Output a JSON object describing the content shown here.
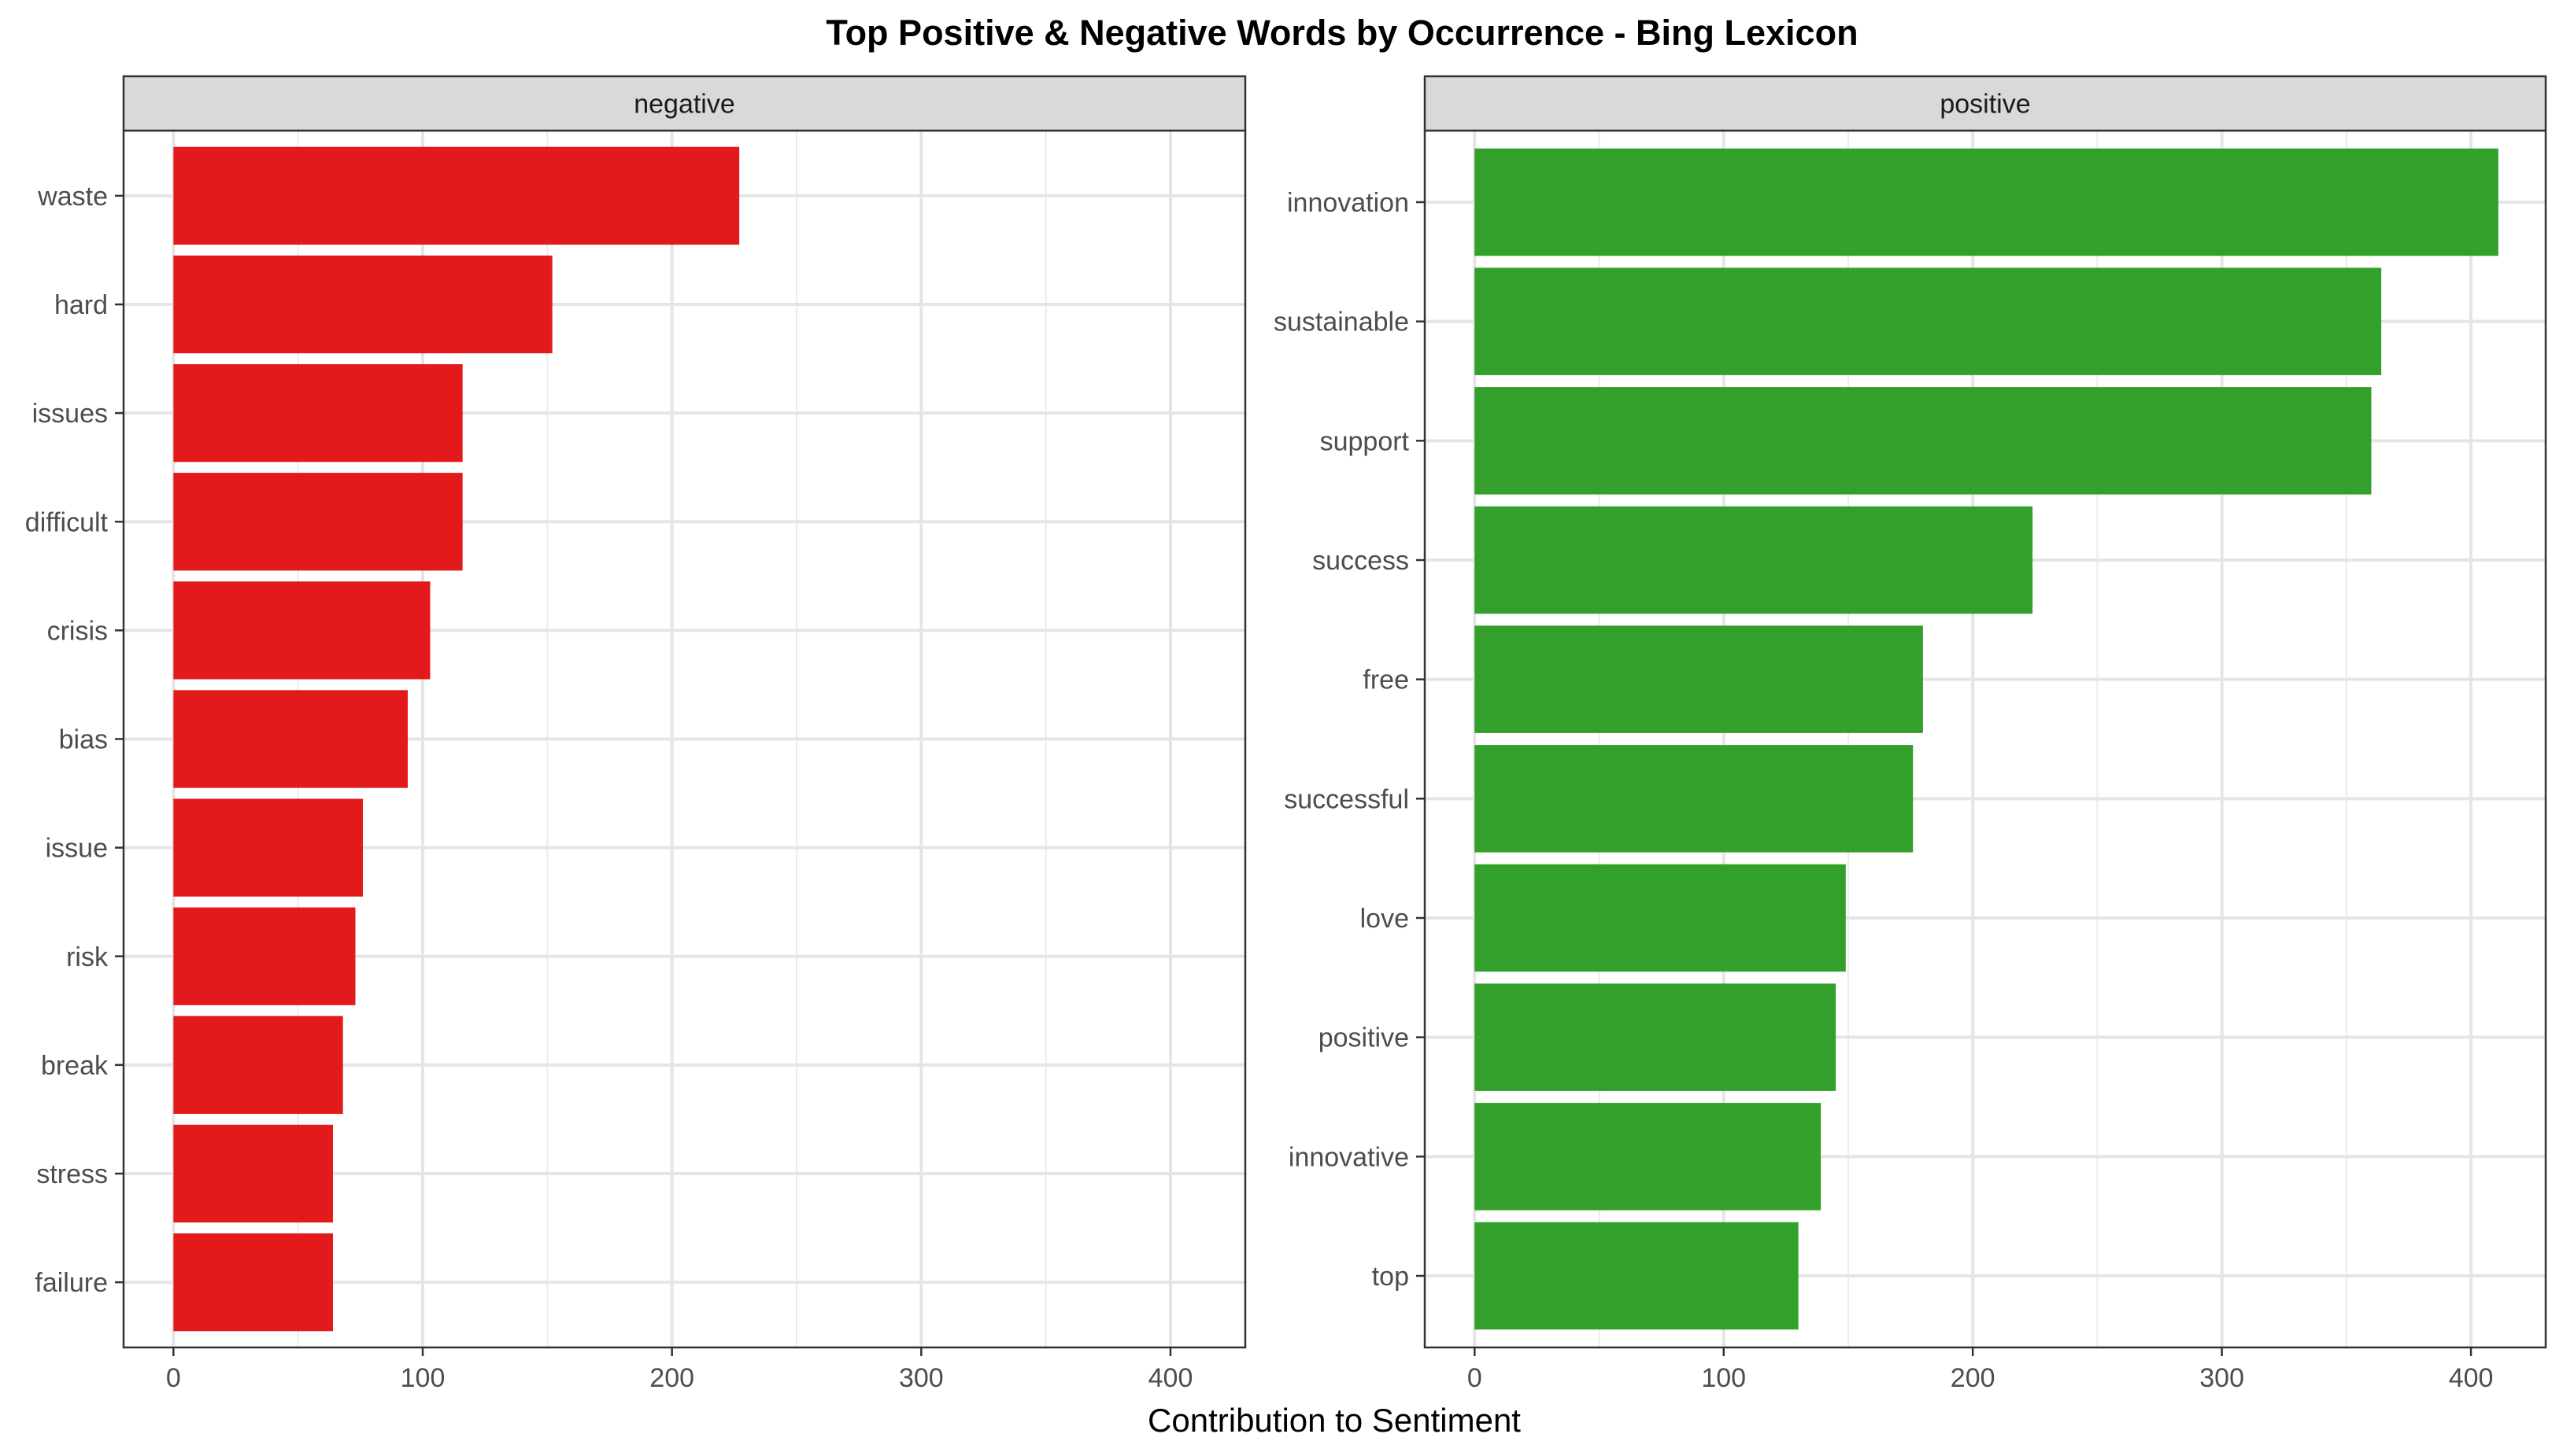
{
  "chart_data": {
    "type": "bar",
    "orientation": "horizontal",
    "title": "Top Positive & Negative Words by Occurrence - Bing Lexicon",
    "xlabel": "Contribution to Sentiment",
    "ylabel": "",
    "xlim": [
      -20,
      430
    ],
    "xticks": [
      0,
      100,
      200,
      300,
      400
    ],
    "grid": true,
    "legend": "none",
    "panels": [
      {
        "strip_label": "negative",
        "color": "#E31A1C",
        "categories": [
          "waste",
          "hard",
          "issues",
          "difficult",
          "crisis",
          "bias",
          "issue",
          "risk",
          "break",
          "stress",
          "failure"
        ],
        "values": [
          227,
          152,
          116,
          116,
          103,
          94,
          76,
          73,
          68,
          64,
          64
        ]
      },
      {
        "strip_label": "positive",
        "color": "#33A02C",
        "categories": [
          "innovation",
          "sustainable",
          "support",
          "success",
          "free",
          "successful",
          "love",
          "positive",
          "innovative",
          "top"
        ],
        "values": [
          411,
          364,
          360,
          224,
          180,
          176,
          149,
          145,
          139,
          130
        ]
      }
    ]
  }
}
